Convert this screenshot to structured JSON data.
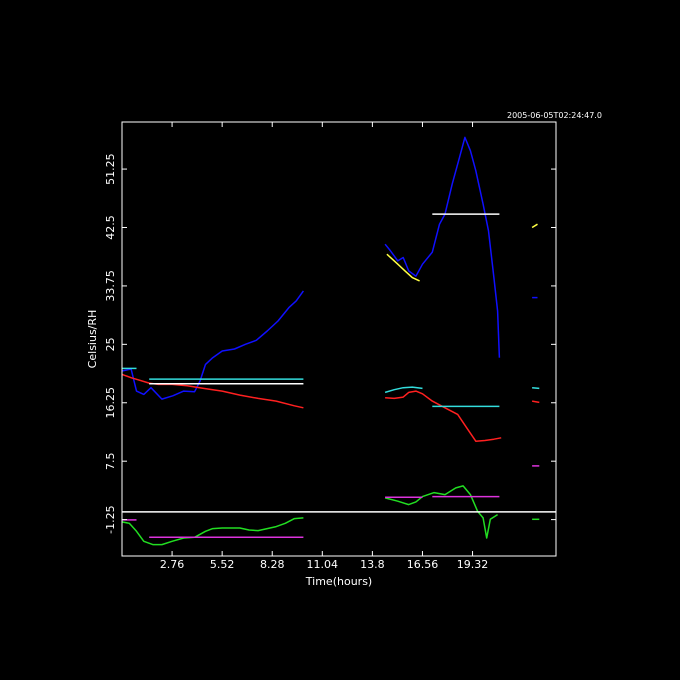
{
  "timestamp": "2005-06-05T02:24:47.0",
  "colors": {
    "background": "#000000",
    "frame": "#ffffff",
    "blue": "#1010ff",
    "red": "#ff2020",
    "green": "#22dd22",
    "cyan": "#33dddd",
    "magenta": "#dd33dd",
    "yellow": "#ffff44",
    "white": "#ffffff"
  },
  "chart_data": {
    "type": "line",
    "xlabel": "Time(hours)",
    "ylabel": "Celsius/RH",
    "xlim": [
      0,
      23.92
    ],
    "ylim": [
      -6.7,
      58.3
    ],
    "x_ticks": [
      2.76,
      5.52,
      8.28,
      11.04,
      13.8,
      16.56,
      19.32
    ],
    "x_tick_labels": [
      "2.76",
      "5.52",
      "8.28",
      "11.04",
      "13.8",
      "16.56",
      "19.32"
    ],
    "y_ticks": [
      -1.25,
      7.5,
      16.25,
      25,
      33.75,
      42.5,
      51.25
    ],
    "y_tick_labels": [
      "-1.25",
      "7.5",
      "16.25",
      "25",
      "33.75",
      "42.5",
      "51.25"
    ],
    "grid": false,
    "series": [
      {
        "color": "blue",
        "segments": [
          [
            [
              0.0,
              21.0
            ],
            [
              0.5,
              21.3
            ],
            [
              0.8,
              18.0
            ],
            [
              1.2,
              17.5
            ],
            [
              1.6,
              18.5
            ],
            [
              2.2,
              16.8
            ],
            [
              2.8,
              17.3
            ],
            [
              3.4,
              18.0
            ],
            [
              4.0,
              17.9
            ],
            [
              4.3,
              19.5
            ],
            [
              4.6,
              22.0
            ],
            [
              5.0,
              23.0
            ],
            [
              5.52,
              24.0
            ],
            [
              6.2,
              24.3
            ],
            [
              6.8,
              25.0
            ],
            [
              7.4,
              25.6
            ],
            [
              8.0,
              27.0
            ],
            [
              8.6,
              28.5
            ],
            [
              9.2,
              30.5
            ],
            [
              9.6,
              31.5
            ],
            [
              10.0,
              33.0
            ]
          ],
          [
            [
              14.5,
              40.0
            ],
            [
              14.8,
              39.0
            ],
            [
              15.2,
              37.5
            ],
            [
              15.5,
              38.0
            ],
            [
              15.8,
              36.0
            ],
            [
              16.2,
              35.2
            ],
            [
              16.56,
              37.0
            ],
            [
              17.1,
              38.8
            ],
            [
              17.5,
              43.0
            ],
            [
              17.8,
              44.5
            ],
            [
              18.2,
              49.0
            ],
            [
              18.6,
              53.0
            ],
            [
              18.9,
              56.0
            ],
            [
              19.2,
              54.0
            ],
            [
              19.5,
              51.0
            ],
            [
              19.9,
              46.0
            ],
            [
              20.2,
              42.0
            ],
            [
              20.5,
              35.0
            ],
            [
              20.7,
              30.0
            ],
            [
              20.8,
              23.0
            ]
          ],
          [
            [
              22.6,
              32.0
            ],
            [
              22.9,
              32.0
            ]
          ]
        ]
      },
      {
        "color": "red",
        "segments": [
          [
            [
              0.0,
              20.5
            ],
            [
              0.5,
              20.0
            ],
            [
              1.5,
              19.2
            ],
            [
              2.0,
              19.0
            ],
            [
              2.76,
              19.0
            ],
            [
              3.6,
              18.8
            ],
            [
              4.5,
              18.4
            ],
            [
              5.52,
              18.0
            ],
            [
              6.5,
              17.4
            ],
            [
              7.5,
              16.9
            ],
            [
              8.5,
              16.5
            ],
            [
              9.5,
              15.8
            ],
            [
              10.0,
              15.5
            ]
          ],
          [
            [
              14.5,
              17.0
            ],
            [
              15.0,
              16.9
            ],
            [
              15.5,
              17.1
            ],
            [
              15.8,
              17.8
            ],
            [
              16.2,
              18.0
            ],
            [
              16.56,
              17.6
            ],
            [
              17.1,
              16.5
            ],
            [
              17.8,
              15.5
            ],
            [
              18.5,
              14.5
            ],
            [
              19.0,
              12.5
            ],
            [
              19.5,
              10.5
            ],
            [
              20.0,
              10.6
            ],
            [
              20.5,
              10.8
            ],
            [
              20.9,
              11.0
            ]
          ],
          [
            [
              22.6,
              16.5
            ],
            [
              23.0,
              16.3
            ]
          ]
        ]
      },
      {
        "color": "green",
        "segments": [
          [
            [
              0.0,
              -1.6
            ],
            [
              0.4,
              -1.8
            ],
            [
              0.8,
              -3.0
            ],
            [
              1.2,
              -4.5
            ],
            [
              1.7,
              -5.0
            ],
            [
              2.2,
              -5.0
            ],
            [
              2.76,
              -4.5
            ],
            [
              3.4,
              -4.0
            ],
            [
              4.0,
              -3.9
            ],
            [
              4.6,
              -3.0
            ],
            [
              5.0,
              -2.6
            ],
            [
              5.52,
              -2.5
            ],
            [
              6.5,
              -2.5
            ],
            [
              7.0,
              -2.8
            ],
            [
              7.5,
              -2.9
            ],
            [
              8.0,
              -2.6
            ],
            [
              8.5,
              -2.3
            ],
            [
              9.0,
              -1.8
            ],
            [
              9.5,
              -1.1
            ],
            [
              10.0,
              -1.0
            ]
          ],
          [
            [
              14.5,
              2.0
            ],
            [
              15.2,
              1.5
            ],
            [
              15.8,
              1.0
            ],
            [
              16.2,
              1.4
            ],
            [
              16.56,
              2.2
            ],
            [
              17.2,
              2.8
            ],
            [
              17.8,
              2.5
            ],
            [
              18.4,
              3.5
            ],
            [
              18.8,
              3.8
            ],
            [
              19.2,
              2.5
            ],
            [
              19.6,
              0.0
            ],
            [
              19.9,
              -1.0
            ],
            [
              20.1,
              -4.0
            ],
            [
              20.3,
              -1.2
            ],
            [
              20.7,
              -0.5
            ]
          ],
          [
            [
              22.6,
              -1.2
            ],
            [
              23.0,
              -1.2
            ]
          ]
        ]
      },
      {
        "color": "cyan",
        "segments": [
          [
            [
              0.0,
              21.4
            ],
            [
              0.8,
              21.4
            ]
          ],
          [
            [
              1.5,
              19.8
            ],
            [
              10.0,
              19.8
            ]
          ],
          [
            [
              14.5,
              17.8
            ],
            [
              15.0,
              18.2
            ],
            [
              15.5,
              18.5
            ],
            [
              16.0,
              18.6
            ],
            [
              16.56,
              18.4
            ]
          ],
          [
            [
              17.1,
              15.7
            ],
            [
              20.8,
              15.7
            ]
          ],
          [
            [
              22.6,
              18.5
            ],
            [
              23.0,
              18.4
            ]
          ]
        ]
      },
      {
        "color": "magenta",
        "segments": [
          [
            [
              0.0,
              -1.3
            ],
            [
              0.8,
              -1.3
            ]
          ],
          [
            [
              1.5,
              -3.9
            ],
            [
              10.0,
              -3.9
            ]
          ],
          [
            [
              14.5,
              2.1
            ],
            [
              16.56,
              2.1
            ]
          ],
          [
            [
              17.1,
              2.2
            ],
            [
              20.8,
              2.2
            ]
          ],
          [
            [
              22.6,
              6.8
            ],
            [
              23.0,
              6.8
            ]
          ]
        ]
      },
      {
        "color": "white",
        "segments": [
          [
            [
              1.5,
              19.1
            ],
            [
              10.0,
              19.1
            ]
          ],
          [
            [
              17.1,
              44.5
            ],
            [
              20.8,
              44.5
            ]
          ],
          [
            [
              0.0,
              -0.1
            ],
            [
              23.92,
              -0.1
            ]
          ]
        ]
      },
      {
        "color": "yellow",
        "segments": [
          [
            [
              14.6,
              38.5
            ],
            [
              15.2,
              37.0
            ],
            [
              15.6,
              36.0
            ],
            [
              16.0,
              35.0
            ],
            [
              16.4,
              34.5
            ]
          ],
          [
            [
              22.6,
              42.5
            ],
            [
              22.9,
              43.0
            ]
          ]
        ]
      }
    ]
  }
}
